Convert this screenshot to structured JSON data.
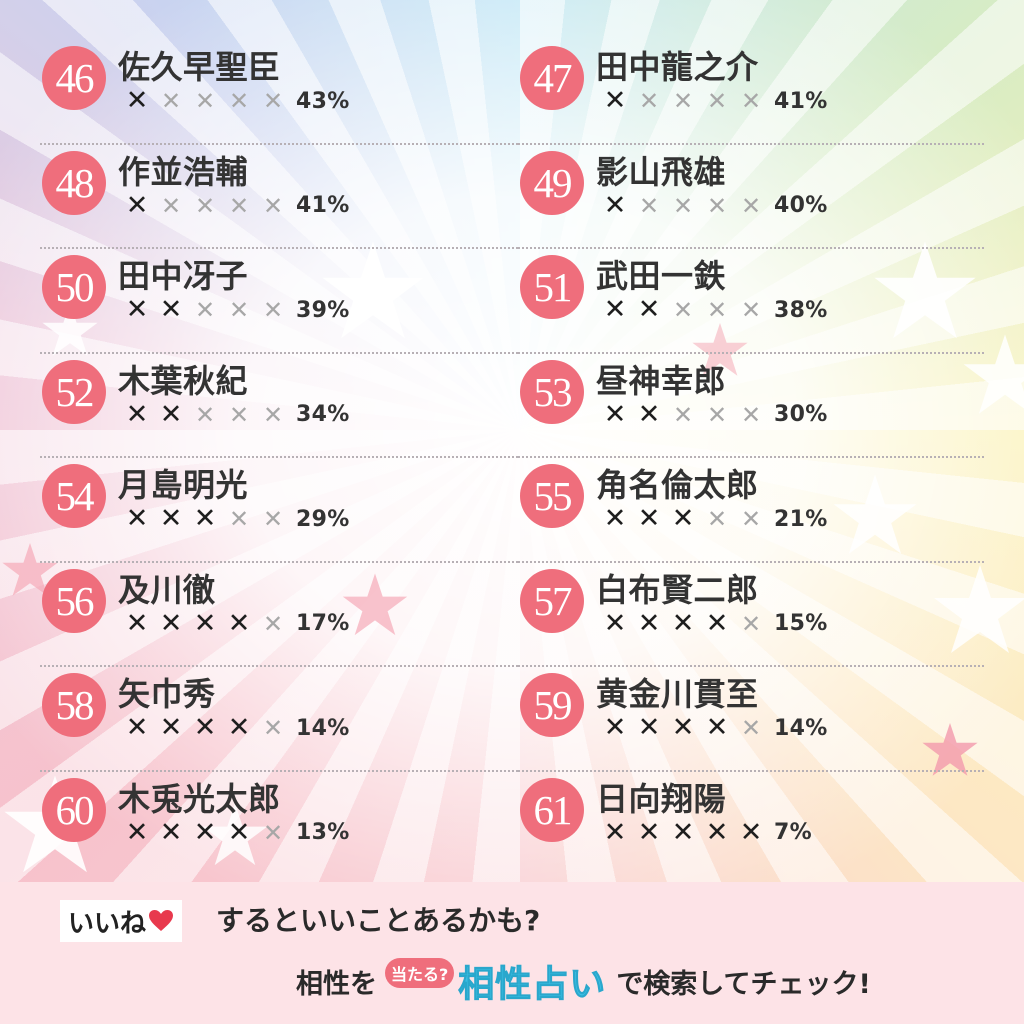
{
  "rankings": [
    {
      "rank": "46",
      "name": "佐久早聖臣",
      "marks": "43%",
      "filled": 1
    },
    {
      "rank": "47",
      "name": "田中龍之介",
      "marks": "41%",
      "filled": 1
    },
    {
      "rank": "48",
      "name": "作並浩輔",
      "marks": "41%",
      "filled": 1
    },
    {
      "rank": "49",
      "name": "影山飛雄",
      "marks": "40%",
      "filled": 1
    },
    {
      "rank": "50",
      "name": "田中冴子",
      "marks": "39%",
      "filled": 2
    },
    {
      "rank": "51",
      "name": "武田一鉄",
      "marks": "38%",
      "filled": 2
    },
    {
      "rank": "52",
      "name": "木葉秋紀",
      "marks": "34%",
      "filled": 2
    },
    {
      "rank": "53",
      "name": "昼神幸郎",
      "marks": "30%",
      "filled": 2
    },
    {
      "rank": "54",
      "name": "月島明光",
      "marks": "29%",
      "filled": 3
    },
    {
      "rank": "55",
      "name": "角名倫太郎",
      "marks": "21%",
      "filled": 3
    },
    {
      "rank": "56",
      "name": "及川徹",
      "marks": "17%",
      "filled": 4
    },
    {
      "rank": "57",
      "name": "白布賢二郎",
      "marks": "15%",
      "filled": 4
    },
    {
      "rank": "58",
      "name": "矢巾秀",
      "marks": "14%",
      "filled": 4
    },
    {
      "rank": "59",
      "name": "黄金川貫至",
      "marks": "14%",
      "filled": 4
    },
    {
      "rank": "60",
      "name": "木兎光太郎",
      "marks": "13%",
      "filled": 4
    },
    {
      "rank": "61",
      "name": "日向翔陽",
      "marks": "7%",
      "filled": 5
    }
  ],
  "mark_symbol": "✕",
  "mark_total": 5,
  "colors": {
    "rank_circle": "#ef6e7c",
    "mark_on": "#1e1e1e",
    "mark_off": "#a7a7a7",
    "footer_bg": "#fde3e7",
    "brand": "#39bfe4",
    "heart": "#e8394d"
  },
  "footer": {
    "like_label": "いいね",
    "heart_icon": "heart-icon",
    "line1": "するといいことあるかも?",
    "line2_prefix": "相性を",
    "badge": "当たる?",
    "brand": "相性占い",
    "line2_suffix": "で検索してチェック!"
  }
}
